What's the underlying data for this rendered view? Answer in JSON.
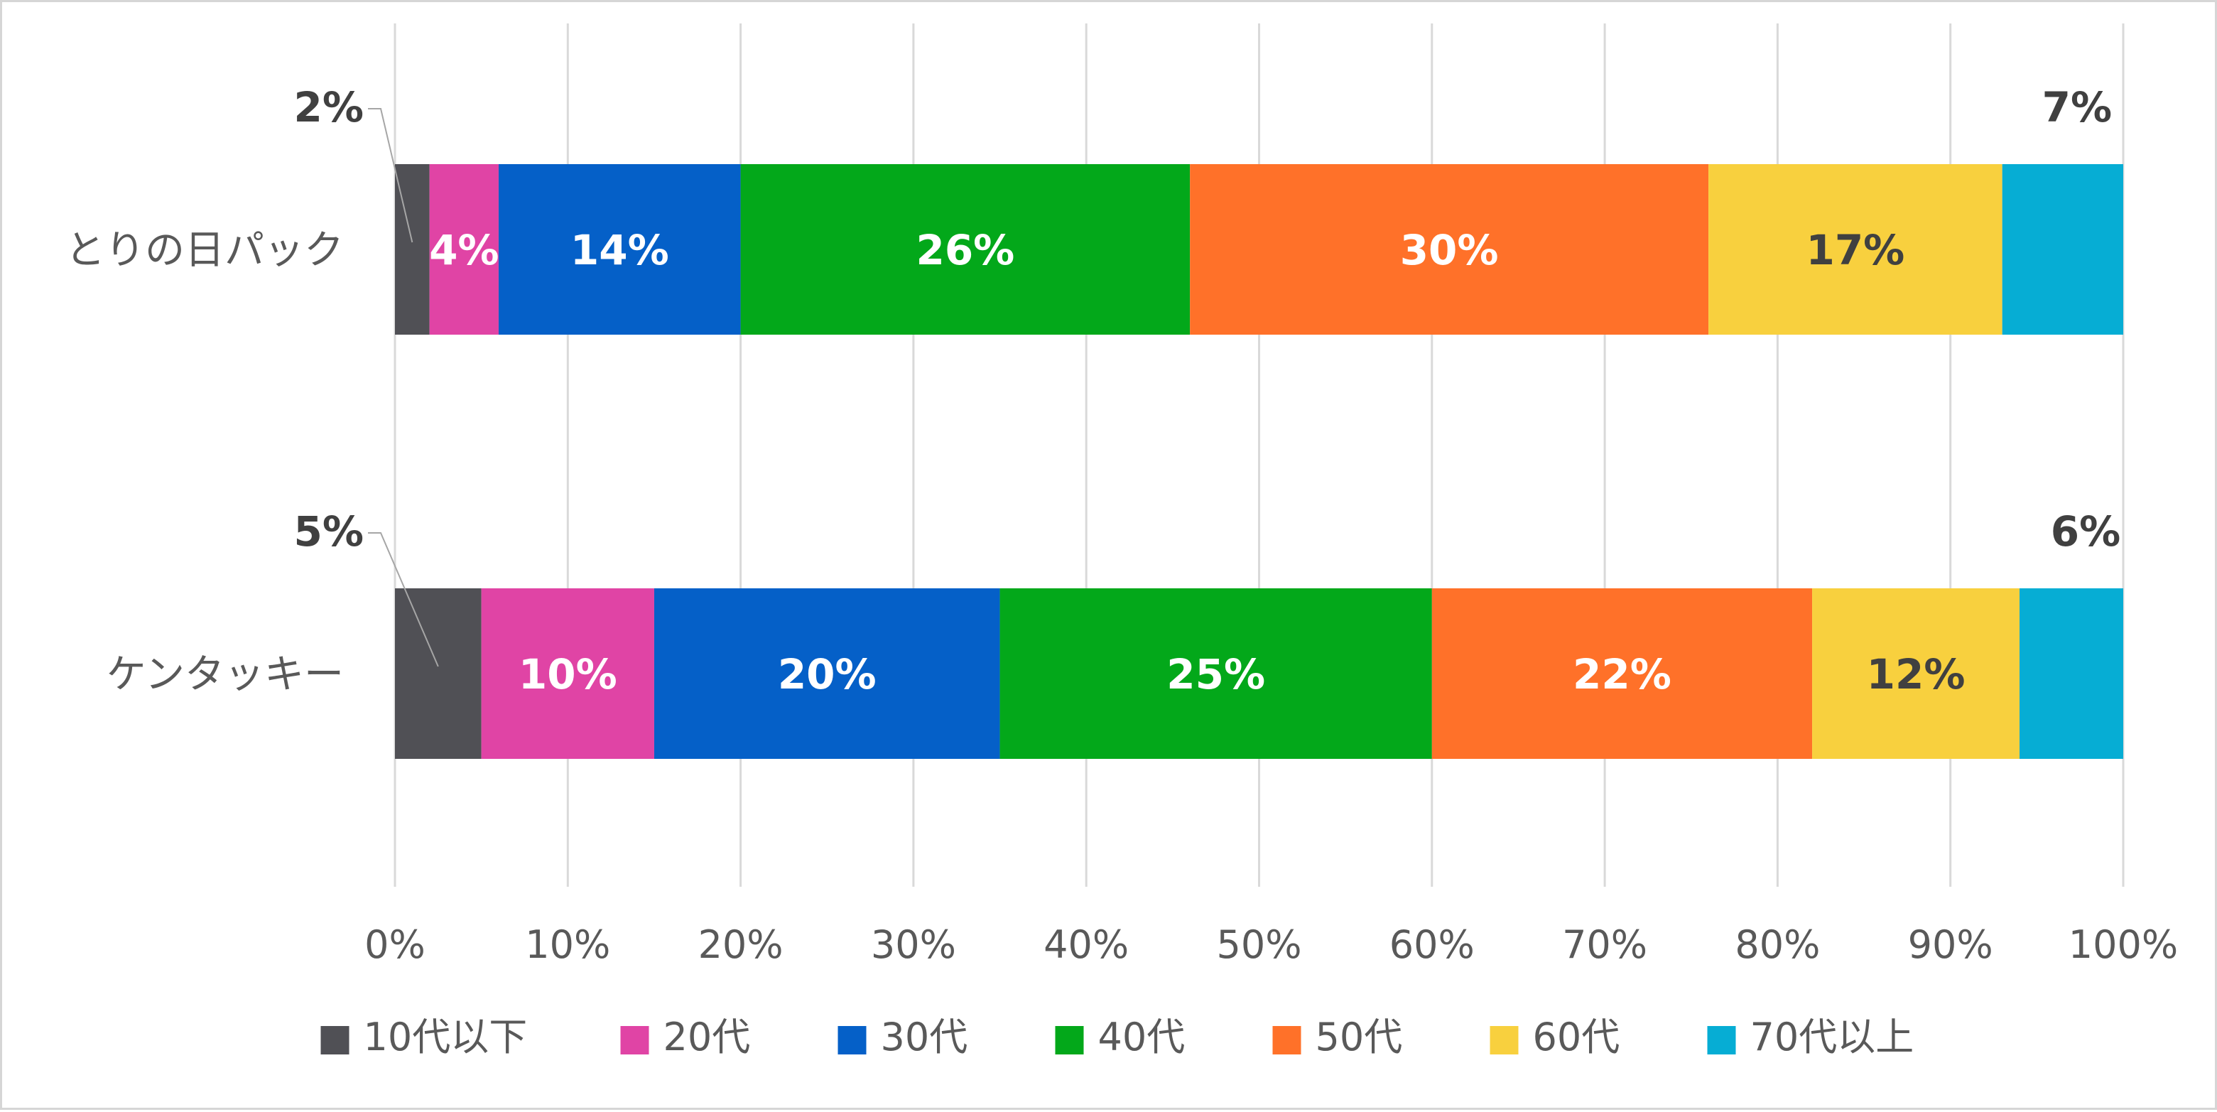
{
  "chart_data": {
    "type": "bar",
    "orientation": "horizontal",
    "stacked": "percent",
    "title": "",
    "xlabel": "",
    "ylabel": "",
    "xlim": [
      0,
      100
    ],
    "grid": true,
    "legend_position": "bottom",
    "categories": [
      "とりの日パック",
      "ケンタッキー"
    ],
    "x_ticks": [
      "0%",
      "10%",
      "20%",
      "30%",
      "40%",
      "50%",
      "60%",
      "70%",
      "80%",
      "90%",
      "100%"
    ],
    "series": [
      {
        "name": "10代以下",
        "color": "#505055",
        "label_color": "#404040",
        "values": [
          2,
          5
        ],
        "labels": [
          "2%",
          "5%"
        ],
        "label_mode": "callout"
      },
      {
        "name": "20代",
        "color": "#e044a5",
        "label_color": "#ffffff",
        "values": [
          4,
          10
        ],
        "labels": [
          "4%",
          "10%"
        ],
        "label_mode": "inside"
      },
      {
        "name": "30代",
        "color": "#0560c8",
        "label_color": "#ffffff",
        "values": [
          14,
          20
        ],
        "labels": [
          "14%",
          "20%"
        ],
        "label_mode": "inside"
      },
      {
        "name": "40代",
        "color": "#03a81a",
        "label_color": "#ffffff",
        "values": [
          26,
          25
        ],
        "labels": [
          "26%",
          "25%"
        ],
        "label_mode": "inside"
      },
      {
        "name": "50代",
        "color": "#ff7129",
        "label_color": "#ffffff",
        "values": [
          30,
          22
        ],
        "labels": [
          "30%",
          "22%"
        ],
        "label_mode": "inside"
      },
      {
        "name": "60代",
        "color": "#f8d03e",
        "label_color": "#404040",
        "values": [
          17,
          12
        ],
        "labels": [
          "17%",
          "12%"
        ],
        "label_mode": "inside"
      },
      {
        "name": "70代以上",
        "color": "#06add4",
        "label_color": "#404040",
        "values": [
          7,
          6
        ],
        "labels": [
          "7%",
          "6%"
        ],
        "label_mode": "above"
      }
    ]
  }
}
